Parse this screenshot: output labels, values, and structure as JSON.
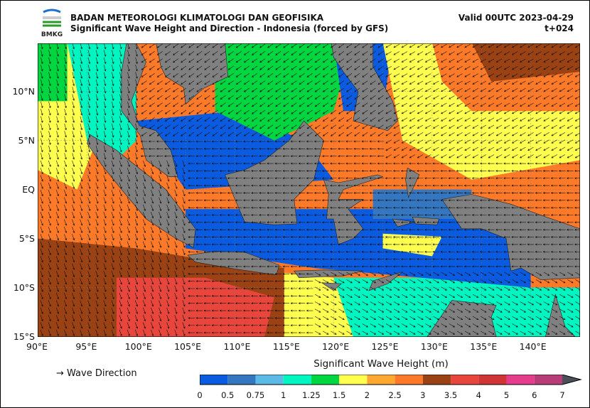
{
  "header": {
    "agency": "BADAN METEOROLOGI KLIMATOLOGI DAN GEOFISIKA",
    "title": "Significant Wave Height and Direction - Indonesia (forced by GFS)",
    "valid": "Valid 00UTC 2023-04-29",
    "lead": "t+024",
    "logo_text": "BMKG"
  },
  "map": {
    "lon_range": [
      90,
      145
    ],
    "lat_range": [
      -15,
      15
    ],
    "lon_ticks": [
      "90°E",
      "95°E",
      "100°E",
      "105°E",
      "110°E",
      "115°E",
      "120°E",
      "125°E",
      "130°E",
      "135°E",
      "140°E"
    ],
    "lat_ticks": [
      "10°N",
      "5°N",
      "EQ",
      "5°S",
      "10°S",
      "15°S"
    ],
    "land_color": "#808080"
  },
  "legend": {
    "arrow_label": "→  Wave Direction"
  },
  "colorbar": {
    "title": "Significant Wave Height (m)",
    "ticks": [
      "0",
      "0.5",
      "0.75",
      "1",
      "1.25",
      "1.5",
      "2",
      "2.5",
      "3",
      "3.5",
      "4",
      "5",
      "6",
      "7"
    ],
    "colors": [
      "#0a5be0",
      "#3576c0",
      "#5bbbe6",
      "#00f5c0",
      "#00d640",
      "#ffff50",
      "#ffa830",
      "#ff7a28",
      "#9a4214",
      "#e8463c",
      "#d03434",
      "#e63c8c",
      "#b83c78"
    ],
    "extend_color": "#4a5058"
  }
}
